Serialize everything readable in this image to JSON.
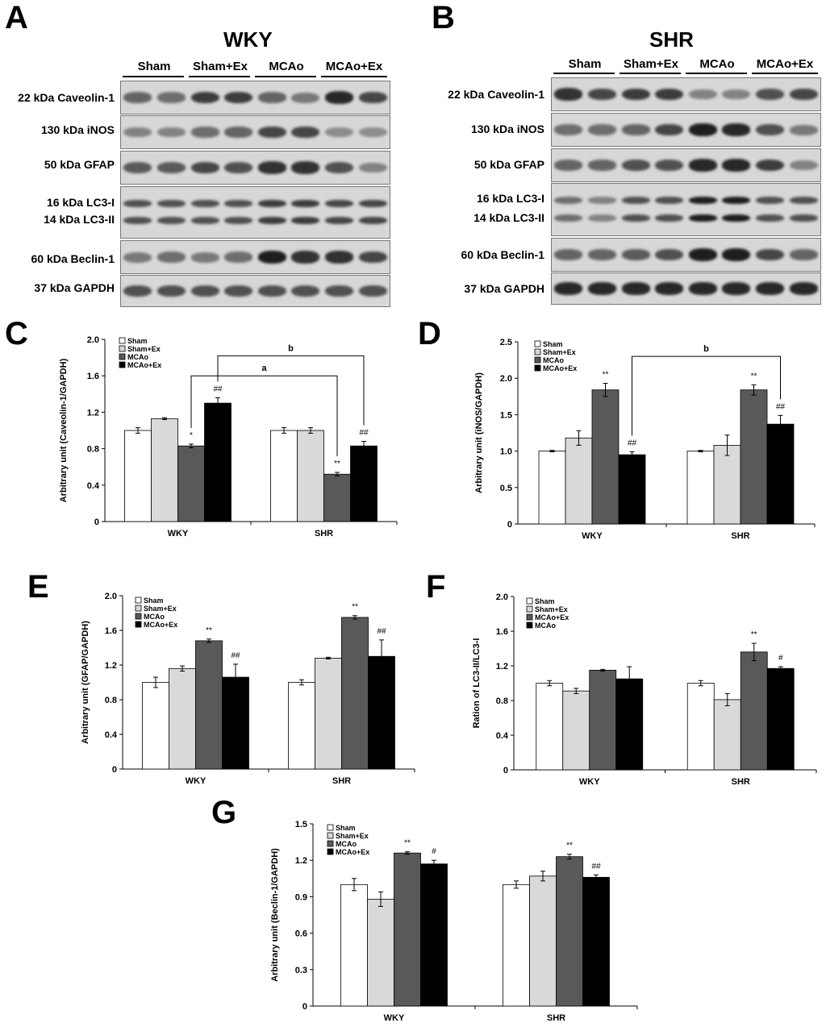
{
  "panels": {
    "A": "A",
    "B": "B",
    "C": "C",
    "D": "D",
    "E": "E",
    "F": "F",
    "G": "G"
  },
  "blots": {
    "wky": {
      "title": "WKY",
      "groups": [
        "Sham",
        "Sham+Ex",
        "MCAo",
        "MCAo+Ex"
      ],
      "rows": [
        {
          "label": "22 kDa Caveolin-1",
          "lanes": [
            0.6,
            0.55,
            0.8,
            0.8,
            0.6,
            0.5,
            0.9,
            0.75
          ]
        },
        {
          "label": "130 kDa iNOS",
          "lanes": [
            0.45,
            0.45,
            0.55,
            0.6,
            0.75,
            0.75,
            0.4,
            0.4
          ]
        },
        {
          "label": "50 kDa GFAP",
          "lanes": [
            0.65,
            0.65,
            0.75,
            0.7,
            0.85,
            0.85,
            0.7,
            0.45
          ]
        },
        {
          "label": "16 kDa LC3-I",
          "label2": "14 kDa LC3-II",
          "lanes": [
            0.7,
            0.7,
            0.7,
            0.7,
            0.8,
            0.8,
            0.75,
            0.75
          ],
          "double": true
        },
        {
          "label": "60 kDa Beclin-1",
          "lanes": [
            0.5,
            0.55,
            0.5,
            0.55,
            0.95,
            0.85,
            0.85,
            0.75
          ]
        },
        {
          "label": "37 kDa GAPDH",
          "lanes": [
            0.7,
            0.7,
            0.7,
            0.7,
            0.7,
            0.7,
            0.7,
            0.7
          ]
        }
      ]
    },
    "shr": {
      "title": "SHR",
      "groups": [
        "Sham",
        "Sham+Ex",
        "MCAo",
        "MCAo+Ex"
      ],
      "rows": [
        {
          "label": "22 kDa Caveolin-1",
          "lanes": [
            0.85,
            0.75,
            0.8,
            0.8,
            0.45,
            0.45,
            0.7,
            0.75
          ]
        },
        {
          "label": "130 kDa iNOS",
          "lanes": [
            0.55,
            0.55,
            0.6,
            0.75,
            0.95,
            0.9,
            0.7,
            0.5
          ]
        },
        {
          "label": "50 kDa GFAP",
          "lanes": [
            0.6,
            0.6,
            0.7,
            0.7,
            0.9,
            0.9,
            0.8,
            0.45
          ]
        },
        {
          "label": "16 kDa LC3-I",
          "label2": "14 kDa LC3-II",
          "lanes": [
            0.55,
            0.45,
            0.7,
            0.7,
            0.95,
            0.95,
            0.7,
            0.7
          ],
          "double": true
        },
        {
          "label": "60 kDa Beclin-1",
          "lanes": [
            0.6,
            0.6,
            0.65,
            0.7,
            0.95,
            0.95,
            0.75,
            0.6
          ]
        },
        {
          "label": "37 kDa GAPDH",
          "lanes": [
            0.9,
            0.9,
            0.9,
            0.9,
            0.9,
            0.9,
            0.9,
            0.9
          ]
        }
      ]
    }
  },
  "chart_data": [
    {
      "id": "C",
      "type": "bar",
      "categories": [
        "WKY",
        "SHR"
      ],
      "ylabel": "Arbitrary unit (Caveolin-1/GAPDH)",
      "ylim": [
        0,
        2.0
      ],
      "yticks": [
        "0",
        "0.4",
        "0.8",
        "1.2",
        "1.6",
        "2.0"
      ],
      "ytick_values": [
        0,
        0.4,
        0.8,
        1.2,
        1.6,
        2.0
      ],
      "series": [
        {
          "name": "Sham",
          "values": [
            1.0,
            1.0
          ],
          "err": [
            0.03,
            0.03
          ],
          "color": "#ffffff"
        },
        {
          "name": "Sham+Ex",
          "values": [
            1.13,
            1.0
          ],
          "err": [
            0.01,
            0.03
          ],
          "color": "#d9d9d9"
        },
        {
          "name": "MCAo",
          "values": [
            0.83,
            0.52
          ],
          "err": [
            0.02,
            0.02
          ],
          "color": "#595959"
        },
        {
          "name": "MCAo+Ex",
          "values": [
            1.3,
            0.83
          ],
          "err": [
            0.06,
            0.05
          ],
          "color": "#000000"
        }
      ],
      "annotations": [
        [
          "",
          "",
          "*",
          "##"
        ],
        [
          "",
          "",
          "**",
          "##"
        ]
      ],
      "brackets": [
        {
          "label": "a",
          "from": [
            0,
            2
          ],
          "to": [
            1,
            2
          ],
          "level": 1.6
        },
        {
          "label": "b",
          "from": [
            0,
            3
          ],
          "to": [
            1,
            3
          ],
          "level": 1.82
        }
      ]
    },
    {
      "id": "D",
      "type": "bar",
      "categories": [
        "WKY",
        "SHR"
      ],
      "ylabel": "Arbitrary unit (iNOS/GAPDH)",
      "ylim": [
        0,
        2.5
      ],
      "yticks": [
        "0",
        "0.5",
        "1.0",
        "1.5",
        "2.0",
        "2.5"
      ],
      "ytick_values": [
        0,
        0.5,
        1.0,
        1.5,
        2.0,
        2.5
      ],
      "series": [
        {
          "name": "Sham",
          "values": [
            1.0,
            1.0
          ],
          "err": [
            0.01,
            0.01
          ],
          "color": "#ffffff"
        },
        {
          "name": "Sham+Ex",
          "values": [
            1.18,
            1.08
          ],
          "err": [
            0.1,
            0.14
          ],
          "color": "#d9d9d9"
        },
        {
          "name": "MCAo",
          "values": [
            1.84,
            1.84
          ],
          "err": [
            0.09,
            0.07
          ],
          "color": "#595959"
        },
        {
          "name": "MCAo+Ex",
          "values": [
            0.95,
            1.37
          ],
          "err": [
            0.04,
            0.12
          ],
          "color": "#000000"
        }
      ],
      "annotations": [
        [
          "",
          "",
          "**",
          "##"
        ],
        [
          "",
          "",
          "**",
          "##"
        ]
      ],
      "brackets": [
        {
          "label": "b",
          "from": [
            0,
            3
          ],
          "to": [
            1,
            3
          ],
          "level": 2.3
        }
      ]
    },
    {
      "id": "E",
      "type": "bar",
      "categories": [
        "WKY",
        "SHR"
      ],
      "ylabel": "Arbitrary unit (GFAP/GAPDH)",
      "ylim": [
        0,
        2.0
      ],
      "yticks": [
        "0",
        "0.4",
        "0.8",
        "1.2",
        "1.6",
        "2.0"
      ],
      "ytick_values": [
        0,
        0.4,
        0.8,
        1.2,
        1.6,
        2.0
      ],
      "series": [
        {
          "name": "Sham",
          "values": [
            1.0,
            1.0
          ],
          "err": [
            0.06,
            0.03
          ],
          "color": "#ffffff"
        },
        {
          "name": "Sham+Ex",
          "values": [
            1.16,
            1.28
          ],
          "err": [
            0.03,
            0.01
          ],
          "color": "#d9d9d9"
        },
        {
          "name": "MCAo",
          "values": [
            1.48,
            1.75
          ],
          "err": [
            0.02,
            0.02
          ],
          "color": "#595959"
        },
        {
          "name": "MCAo+Ex",
          "values": [
            1.06,
            1.3
          ],
          "err": [
            0.15,
            0.19
          ],
          "color": "#000000"
        }
      ],
      "annotations": [
        [
          "",
          "",
          "**",
          "##"
        ],
        [
          "",
          "",
          "**",
          "##"
        ]
      ],
      "brackets": []
    },
    {
      "id": "F",
      "type": "bar",
      "categories": [
        "WKY",
        "SHR"
      ],
      "ylabel": "Ration of LC3-II/LC3-I",
      "ylim": [
        0,
        2.0
      ],
      "yticks": [
        "0",
        "0.4",
        "0.8",
        "1.2",
        "1.6",
        "2.0"
      ],
      "ytick_values": [
        0,
        0.4,
        0.8,
        1.2,
        1.6,
        2.0
      ],
      "series": [
        {
          "name": "Sham",
          "values": [
            1.0,
            1.0
          ],
          "err": [
            0.03,
            0.03
          ],
          "color": "#ffffff"
        },
        {
          "name": "Sham+Ex",
          "values": [
            0.91,
            0.81
          ],
          "err": [
            0.03,
            0.07
          ],
          "color": "#d9d9d9"
        },
        {
          "name": "MCAo+Ex",
          "values": [
            1.15,
            1.36
          ],
          "err": [
            0.01,
            0.1
          ],
          "color": "#595959"
        },
        {
          "name": "MCAo",
          "values": [
            1.05,
            1.17
          ],
          "err": [
            0.14,
            0.02
          ],
          "color": "#000000"
        }
      ],
      "annotations": [
        [
          "",
          "",
          "",
          ""
        ],
        [
          "",
          "",
          "**",
          "#"
        ]
      ],
      "brackets": []
    },
    {
      "id": "G",
      "type": "bar",
      "categories": [
        "WKY",
        "SHR"
      ],
      "ylabel": "Arbitrary unit (Beclin-1/GAPDH)",
      "ylim": [
        0,
        1.5
      ],
      "yticks": [
        "0",
        "0.3",
        "0.6",
        "0.9",
        "1.2",
        "1.5"
      ],
      "ytick_values": [
        0,
        0.3,
        0.6,
        0.9,
        1.2,
        1.5
      ],
      "series": [
        {
          "name": "Sham",
          "values": [
            1.0,
            1.0
          ],
          "err": [
            0.05,
            0.03
          ],
          "color": "#ffffff"
        },
        {
          "name": "Sham+Ex",
          "values": [
            0.88,
            1.07
          ],
          "err": [
            0.06,
            0.04
          ],
          "color": "#d9d9d9"
        },
        {
          "name": "MCAo",
          "values": [
            1.26,
            1.23
          ],
          "err": [
            0.01,
            0.02
          ],
          "color": "#595959"
        },
        {
          "name": "MCAo+Ex",
          "values": [
            1.17,
            1.06
          ],
          "err": [
            0.03,
            0.02
          ],
          "color": "#000000"
        }
      ],
      "annotations": [
        [
          "",
          "",
          "**",
          "#"
        ],
        [
          "",
          "",
          "**",
          "##"
        ]
      ],
      "brackets": []
    }
  ]
}
